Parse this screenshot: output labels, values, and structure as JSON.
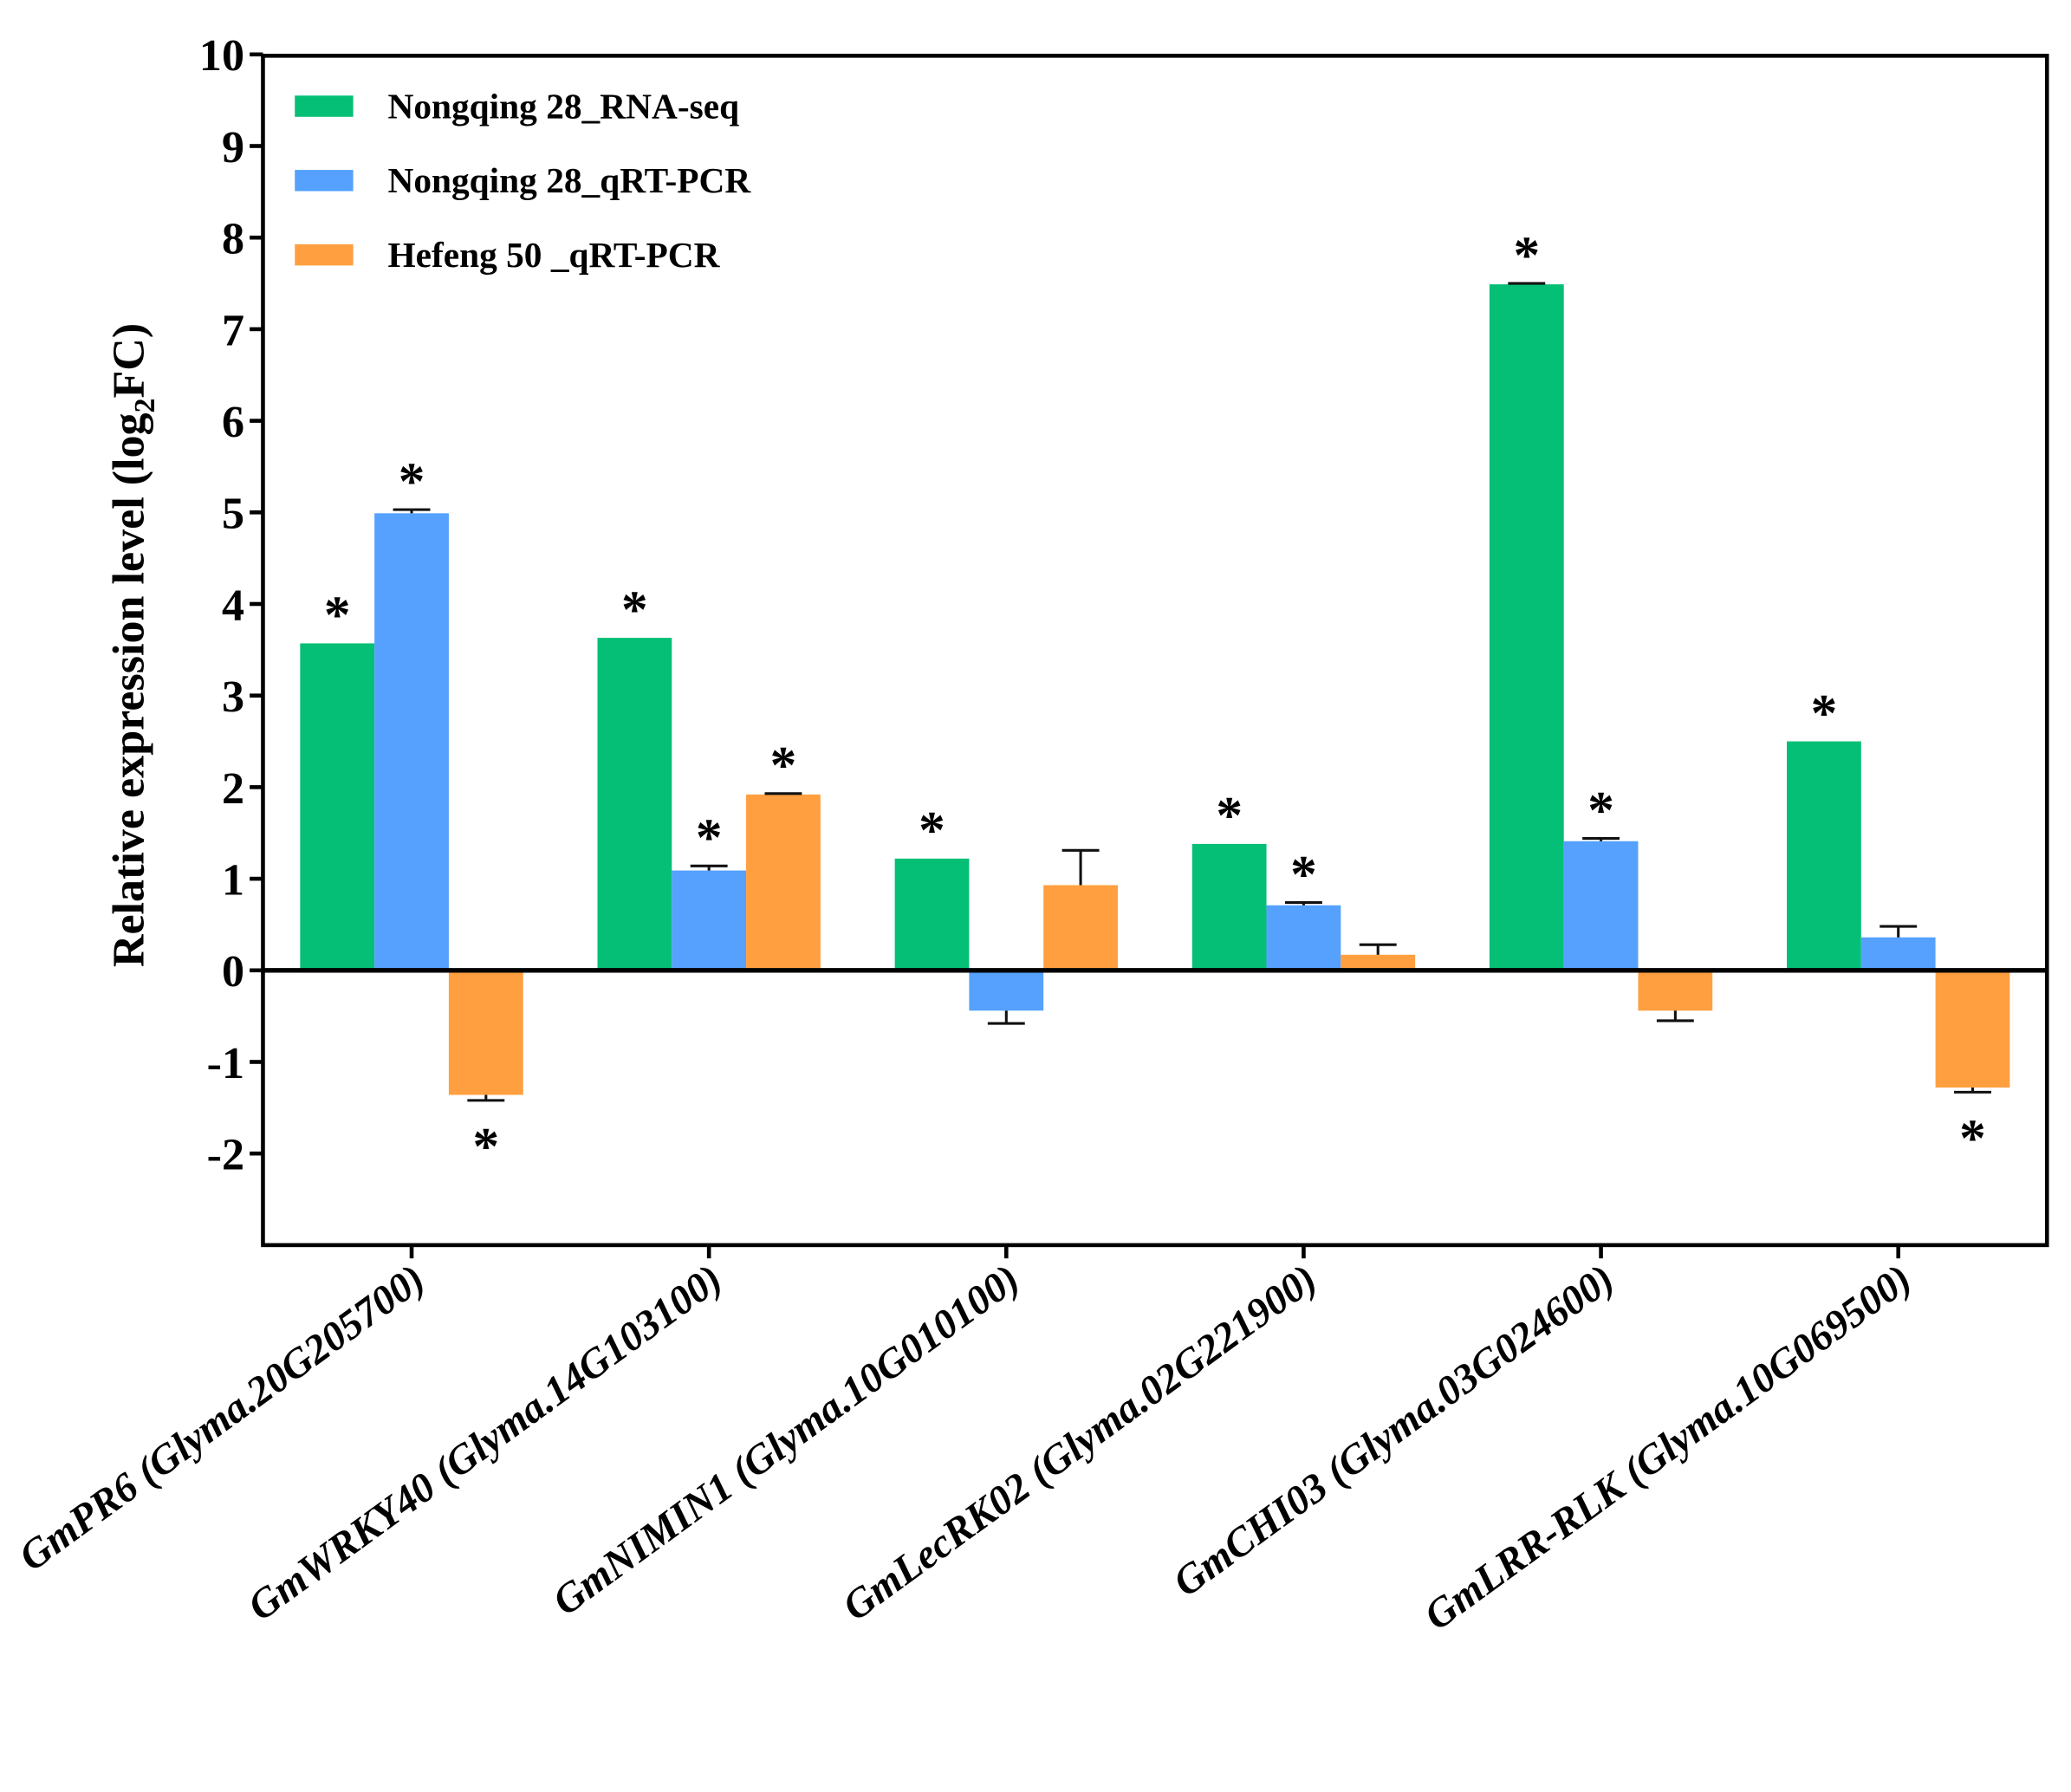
{
  "chart_data": {
    "type": "bar",
    "ylabel_parts": [
      "Relative expression level (log",
      "2",
      "FC)"
    ],
    "xlabel": "",
    "ylim": [
      -3,
      10
    ],
    "yticks": [
      10,
      9,
      8,
      7,
      6,
      5,
      4,
      3,
      2,
      1,
      0,
      -1,
      -2
    ],
    "legend_position": "top-left",
    "grid": false,
    "categories": [
      "GmPR6 (Glyma.20G205700)",
      "GmWRKY40 (Glyma.14G103100)",
      "GmNIMIN1 (Glyma.10G010100)",
      "GmLecRK02 (Glyma.02G221900)",
      "GmCHI03 (Glyma.03G024600)",
      "GmLRR-RLK (Glyma.10G069500)"
    ],
    "series": [
      {
        "name": "Nongqing 28_RNA-seq",
        "color": "#06BF76",
        "values": [
          3.57,
          3.63,
          1.22,
          1.38,
          7.49,
          2.5
        ],
        "errors": [
          0,
          0,
          0,
          0,
          0.01,
          0
        ],
        "significant": [
          true,
          true,
          true,
          true,
          true,
          true
        ]
      },
      {
        "name": "Nongqing 28_qRT-PCR",
        "color": "#55A1FD",
        "values": [
          4.99,
          1.09,
          -0.44,
          0.71,
          1.41,
          0.36
        ],
        "errors": [
          0.04,
          0.05,
          0.14,
          0.03,
          0.03,
          0.12
        ],
        "significant": [
          true,
          true,
          false,
          true,
          true,
          false
        ]
      },
      {
        "name": "Hefeng 50 _qRT-PCR",
        "color": "#FF9F40",
        "values": [
          -1.36,
          1.92,
          0.93,
          0.17,
          -0.44,
          -1.28
        ],
        "errors": [
          0.06,
          0.01,
          0.38,
          0.11,
          0.11,
          0.05
        ],
        "significant": [
          true,
          true,
          false,
          false,
          false,
          true
        ]
      }
    ],
    "significance_marker": "*"
  }
}
